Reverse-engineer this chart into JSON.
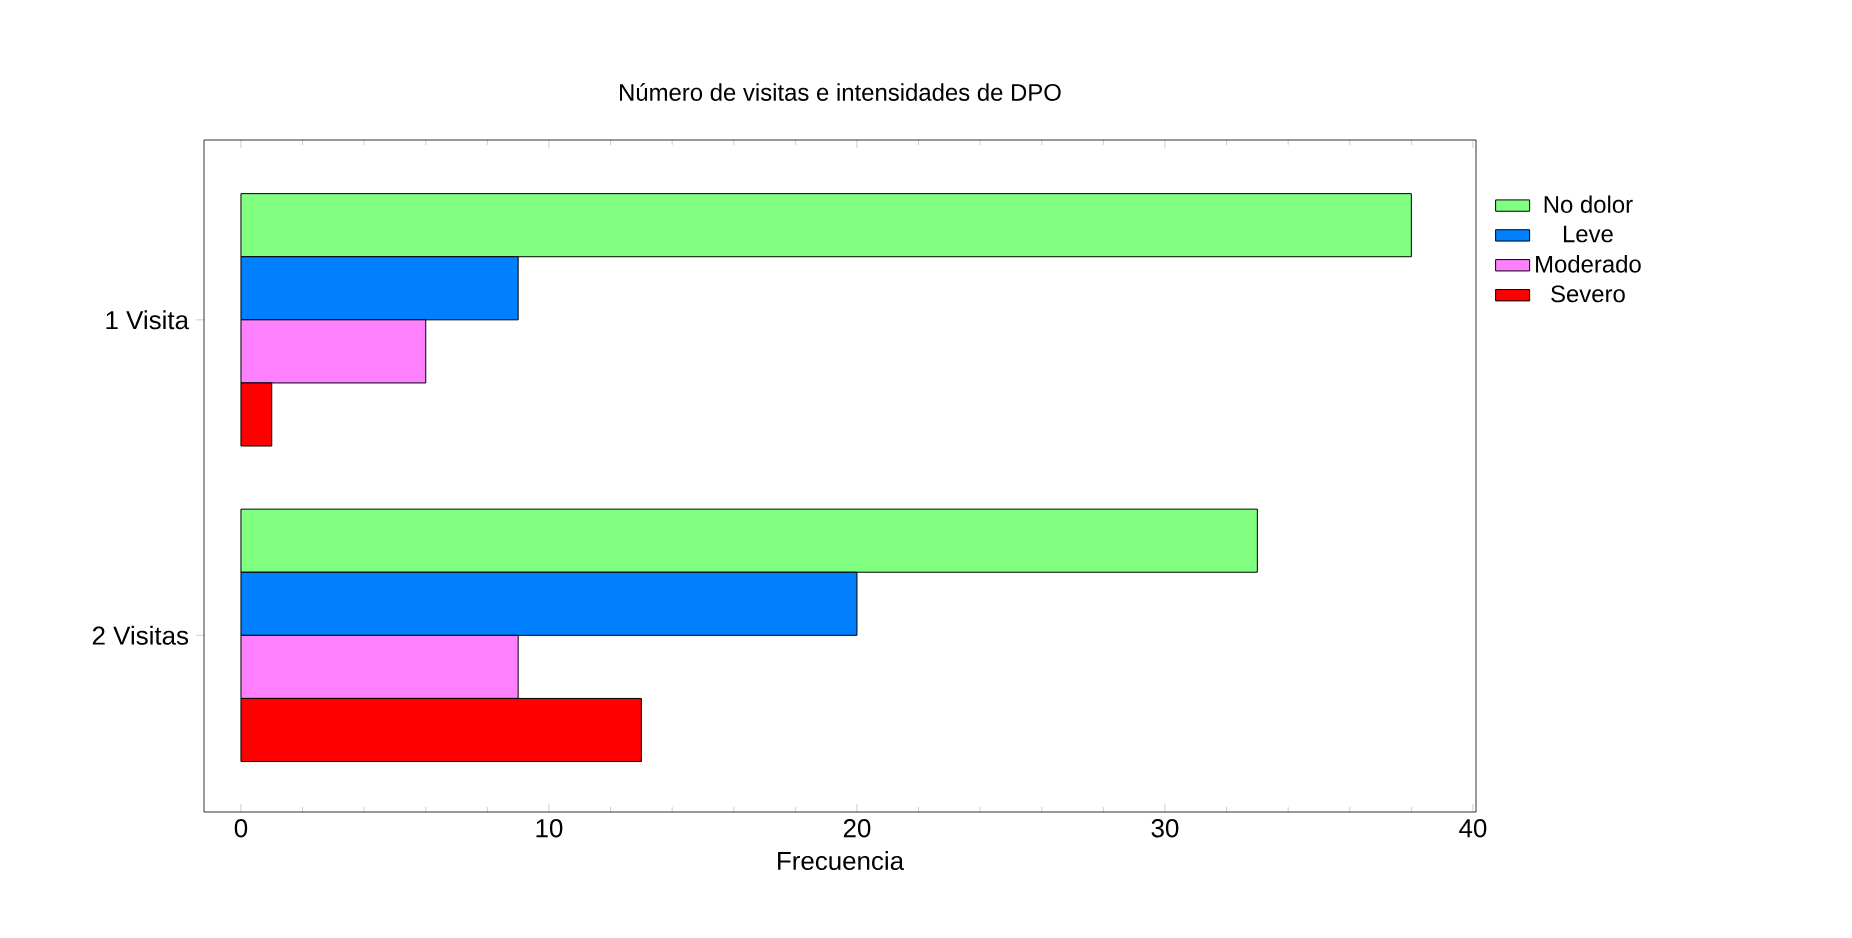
{
  "chart_data": {
    "type": "bar",
    "orientation": "horizontal",
    "title": "Número de visitas e intensidades de DPO",
    "xlabel": "Frecuencia",
    "categories": [
      "1 Visita",
      "2 Visitas"
    ],
    "series": [
      {
        "name": "No dolor",
        "color": "#80ff80",
        "values": [
          38,
          33
        ]
      },
      {
        "name": "Leve",
        "color": "#0080ff",
        "values": [
          9,
          20
        ]
      },
      {
        "name": "Moderado",
        "color": "#ff80ff",
        "values": [
          6,
          9
        ]
      },
      {
        "name": "Severo",
        "color": "#ff0000",
        "values": [
          1,
          13
        ]
      }
    ],
    "xlim": [
      -1.2,
      40.1
    ],
    "xticks": [
      0,
      10,
      20,
      30,
      40
    ],
    "grid": false,
    "legend": "right"
  }
}
